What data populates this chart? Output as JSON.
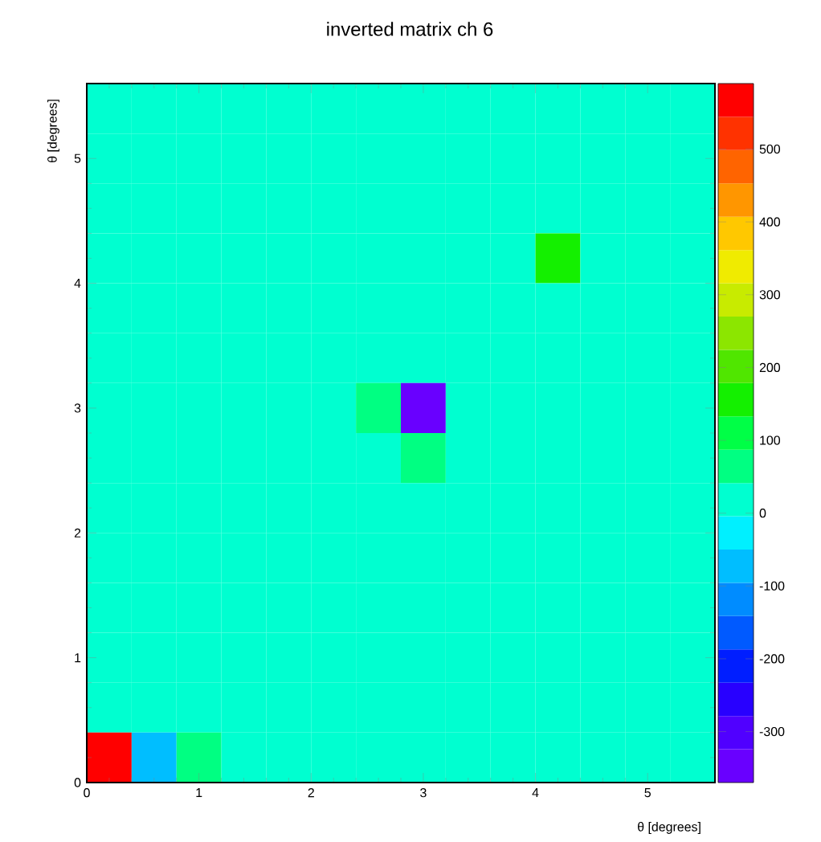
{
  "chart_data": {
    "type": "heatmap",
    "title": "inverted matrix ch 6",
    "xlabel": "θ [degrees]",
    "ylabel": "θ [degrees]",
    "x": [
      0.2,
      0.6,
      1.0,
      1.4,
      1.8,
      2.2,
      2.6,
      3.0,
      3.4,
      3.8,
      4.2,
      4.6,
      5.0,
      5.4
    ],
    "y": [
      5.4,
      5.0,
      4.6,
      4.2,
      3.8,
      3.4,
      3.0,
      2.6,
      2.2,
      1.8,
      1.4,
      1.0,
      0.6,
      0.2
    ],
    "cells": [
      [
        0,
        0,
        0,
        0,
        0,
        0,
        0,
        0,
        0,
        0,
        0,
        0,
        0,
        0
      ],
      [
        0,
        0,
        0,
        0,
        0,
        0,
        0,
        0,
        0,
        0,
        0,
        0,
        0,
        0
      ],
      [
        0,
        0,
        0,
        0,
        0,
        0,
        0,
        0,
        0,
        0,
        0,
        0,
        0,
        0
      ],
      [
        0,
        0,
        0,
        0,
        0,
        0,
        0,
        0,
        0,
        0,
        150,
        0,
        0,
        0
      ],
      [
        0,
        0,
        0,
        0,
        0,
        0,
        0,
        0,
        0,
        0,
        0,
        0,
        0,
        0
      ],
      [
        0,
        0,
        0,
        0,
        0,
        0,
        0,
        0,
        0,
        0,
        0,
        0,
        0,
        0
      ],
      [
        0,
        0,
        0,
        0,
        0,
        0,
        80,
        -340,
        0,
        0,
        0,
        0,
        0,
        0
      ],
      [
        0,
        0,
        0,
        0,
        0,
        0,
        0,
        80,
        0,
        0,
        0,
        0,
        0,
        0
      ],
      [
        0,
        0,
        0,
        0,
        0,
        0,
        0,
        0,
        0,
        0,
        0,
        0,
        0,
        0
      ],
      [
        0,
        0,
        0,
        0,
        0,
        0,
        0,
        0,
        0,
        0,
        0,
        0,
        0,
        0
      ],
      [
        0,
        0,
        0,
        0,
        0,
        0,
        0,
        0,
        0,
        0,
        0,
        0,
        0,
        0
      ],
      [
        0,
        0,
        0,
        0,
        0,
        0,
        0,
        0,
        0,
        0,
        0,
        0,
        0,
        0
      ],
      [
        0,
        0,
        0,
        0,
        0,
        0,
        0,
        0,
        0,
        0,
        0,
        0,
        0,
        0
      ],
      [
        580,
        -80,
        80,
        0,
        0,
        0,
        0,
        0,
        0,
        0,
        0,
        0,
        0,
        0
      ]
    ],
    "xlim": [
      0,
      5.6
    ],
    "ylim": [
      0,
      5.6
    ],
    "xticks": [
      0,
      1,
      2,
      3,
      4,
      5
    ],
    "yticks": [
      0,
      1,
      2,
      3,
      4,
      5
    ],
    "clim": [
      -370,
      590
    ],
    "cticks": [
      -300,
      -200,
      -100,
      0,
      100,
      200,
      300,
      400,
      500
    ],
    "grid": false
  }
}
